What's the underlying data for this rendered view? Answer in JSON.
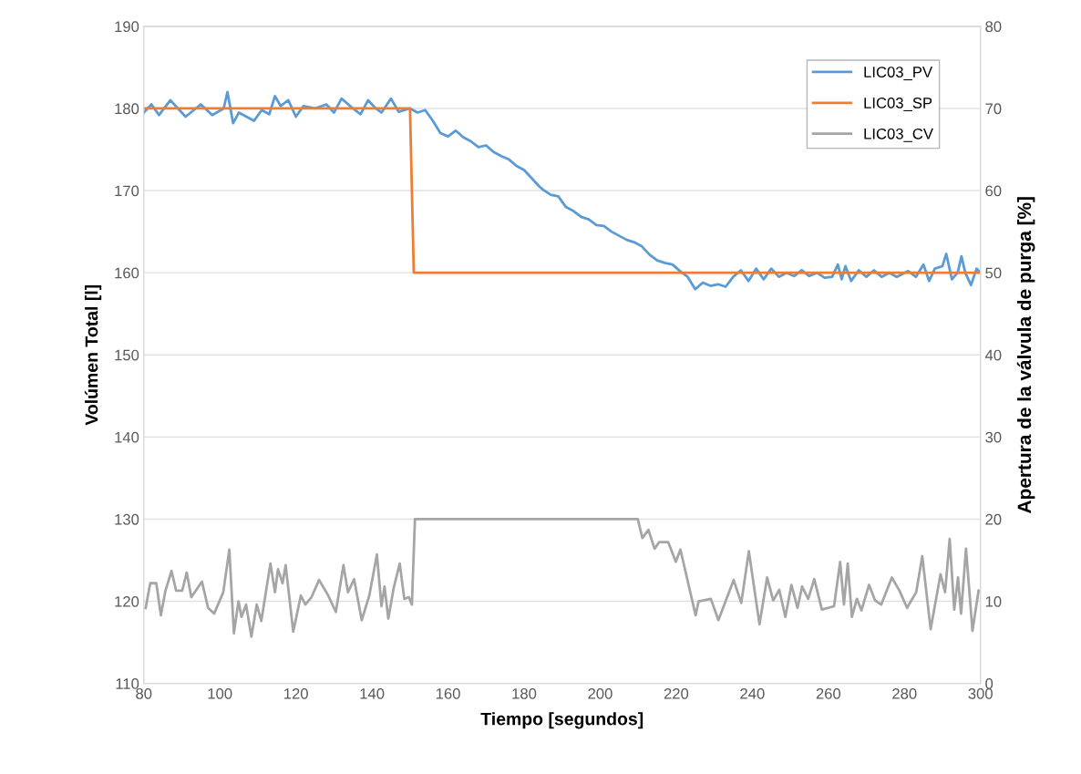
{
  "chart_data": {
    "type": "line",
    "xlabel": "Tiempo [segundos]",
    "ylabel": "Volúmen Total [l]",
    "y2label": "Apertura de la válvula de purga [%]",
    "xlim": [
      80,
      300
    ],
    "xticks": [
      80,
      100,
      120,
      140,
      160,
      180,
      200,
      220,
      240,
      260,
      280,
      300
    ],
    "ylim": [
      110,
      190
    ],
    "yticks": [
      110,
      120,
      130,
      140,
      150,
      160,
      170,
      180,
      190
    ],
    "y2lim": [
      0,
      80
    ],
    "y2ticks": [
      0,
      10,
      20,
      30,
      40,
      50,
      60,
      70,
      80
    ],
    "grid": "y",
    "legend": "top right",
    "marker": "none",
    "line_style": "solid",
    "series": [
      {
        "name": "LIC03_PV",
        "color": "#5b9bd5",
        "x": [
          80,
          82,
          84,
          87,
          89,
          91,
          95,
          98,
          101,
          102,
          103.5,
          105,
          107,
          109,
          111,
          113,
          114.5,
          116,
          118,
          120,
          122,
          125,
          128,
          130,
          132,
          135,
          137,
          139,
          141,
          142.5,
          145,
          147,
          150,
          152,
          154,
          156,
          158,
          160,
          162,
          164,
          166,
          168,
          170,
          172,
          174,
          176,
          178,
          180,
          182,
          184,
          185,
          187,
          189,
          191,
          193,
          195,
          197,
          199,
          201,
          203,
          205,
          207,
          209,
          211,
          213,
          215,
          217,
          219,
          221,
          223,
          225,
          227,
          229,
          231,
          233,
          235,
          237,
          239,
          241,
          243,
          245,
          247,
          249,
          251,
          253,
          255,
          257,
          259,
          261,
          262.5,
          263.5,
          264.5,
          266,
          268,
          270,
          272,
          274,
          276,
          278,
          281,
          283,
          285,
          286.5,
          288,
          290,
          291,
          292.5,
          294,
          295,
          296,
          297.5,
          299,
          300
        ],
        "values": [
          179.5,
          180.5,
          179.2,
          181,
          180,
          179,
          180.5,
          179.2,
          180,
          182,
          178.2,
          179.5,
          179,
          178.5,
          179.8,
          179.3,
          181.5,
          180.3,
          181,
          179,
          180.3,
          180,
          180.5,
          179.5,
          181.2,
          180,
          179.3,
          181,
          180,
          179.5,
          181.2,
          179.6,
          180,
          179.5,
          179.8,
          178.5,
          177,
          176.6,
          177.3,
          176.5,
          176,
          175.3,
          175.5,
          174.7,
          174.2,
          173.8,
          173,
          172.5,
          171.5,
          170.5,
          170.1,
          169.5,
          169.3,
          168,
          167.5,
          166.8,
          166.5,
          165.8,
          165.7,
          165,
          164.5,
          164,
          163.7,
          163.2,
          162.2,
          161.5,
          161.2,
          161,
          160.2,
          159.5,
          158,
          158.8,
          158.4,
          158.6,
          158.3,
          159.5,
          160.3,
          159,
          160.5,
          159.2,
          160.5,
          159.5,
          160,
          159.6,
          160.3,
          159.6,
          160,
          159.4,
          159.5,
          161,
          159.2,
          160.8,
          159,
          160.3,
          159.5,
          160.3,
          159.5,
          160,
          159.5,
          160.2,
          159.5,
          161,
          159,
          160.5,
          160.8,
          162.3,
          159.2,
          160,
          162,
          160,
          158.5,
          160.5,
          160
        ]
      },
      {
        "name": "LIC03_SP",
        "color": "#ed7d31",
        "x": [
          80,
          150,
          151,
          300
        ],
        "values": [
          180,
          180,
          160,
          160
        ]
      },
      {
        "name": "LIC03_CV",
        "color": "#a5a5a5",
        "axis": "y2",
        "x": [
          80.5,
          81.7,
          83.3,
          84.5,
          85.7,
          87.3,
          88.5,
          90.1,
          91.3,
          92.5,
          95.3,
          96.9,
          98.5,
          100.9,
          102.5,
          103.7,
          104.9,
          105.7,
          106.9,
          108.3,
          109.7,
          110.9,
          113.3,
          114.5,
          115.3,
          116.5,
          117.3,
          119.3,
          121.3,
          122.5,
          124.1,
          126.1,
          128.5,
          130.5,
          132.5,
          133.7,
          135.3,
          137.3,
          139.3,
          141.3,
          142.5,
          143.3,
          144.3,
          145.7,
          147.3,
          148.5,
          149.7,
          150.5,
          151.3,
          209.9,
          211.1,
          212.7,
          214.3,
          215.5,
          217.9,
          219.9,
          221.1,
          225.1,
          225.9,
          229.1,
          231.1,
          235.1,
          237.1,
          239.1,
          241.9,
          243.9,
          245.5,
          247.1,
          248.7,
          250.3,
          251.9,
          253.1,
          254.7,
          256.3,
          258.3,
          261.5,
          263.1,
          264.1,
          265.1,
          266.2,
          267.5,
          268.7,
          270.7,
          272.3,
          273.9,
          276.7,
          278.7,
          280.7,
          283.1,
          284.7,
          286.9,
          289.5,
          290.7,
          291.9,
          293.1,
          294.1,
          294.9,
          296.2,
          297.9,
          299.5
        ],
        "values": [
          9.2,
          12.2,
          12.2,
          8.3,
          11.3,
          13.7,
          11.3,
          11.3,
          13.5,
          10.5,
          12.4,
          9.2,
          8.5,
          11.1,
          16.3,
          6.1,
          10,
          8.1,
          9.6,
          5.7,
          9.6,
          7.6,
          14.6,
          11.1,
          13.9,
          12.2,
          14.4,
          6.3,
          10.7,
          9.6,
          10.5,
          12.6,
          10.7,
          8.7,
          14.4,
          11.1,
          12.7,
          7.7,
          10.7,
          15.7,
          9.4,
          11.8,
          7.9,
          11.6,
          14.6,
          10.3,
          10.5,
          9.6,
          20,
          20,
          17.7,
          18.7,
          16.4,
          17.2,
          17.2,
          14.8,
          16.3,
          8.3,
          10,
          10.3,
          7.7,
          12.6,
          9.8,
          16.1,
          7.2,
          12.9,
          10.1,
          11.4,
          8.1,
          12,
          9.2,
          11.8,
          10.3,
          12.7,
          9,
          9.4,
          14.8,
          9.6,
          14.6,
          8.1,
          10.3,
          8.9,
          12,
          10.1,
          9.6,
          12.9,
          11.3,
          9.2,
          11.1,
          15.5,
          6.6,
          13.3,
          11.1,
          17.6,
          9,
          12.9,
          8.5,
          16.4,
          6.4,
          11.3
        ]
      }
    ]
  }
}
